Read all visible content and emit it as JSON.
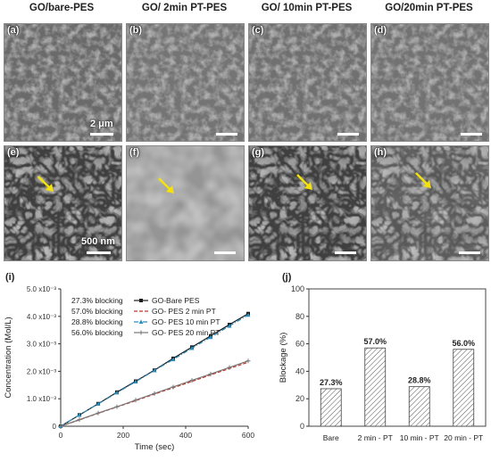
{
  "column_titles": [
    "GO/bare-PES",
    "GO/ 2min PT-PES",
    "GO/ 10min PT-PES",
    "GO/20min PT-PES"
  ],
  "sem_panels_top": [
    {
      "tag": "(a)",
      "scale_label": "2 μm"
    },
    {
      "tag": "(b)",
      "scale_label": ""
    },
    {
      "tag": "(c)",
      "scale_label": ""
    },
    {
      "tag": "(d)",
      "scale_label": ""
    }
  ],
  "sem_panels_bottom": [
    {
      "tag": "(e)",
      "scale_label": "500 nm"
    },
    {
      "tag": "(f)",
      "scale_label": ""
    },
    {
      "tag": "(g)",
      "scale_label": ""
    },
    {
      "tag": "(h)",
      "scale_label": ""
    }
  ],
  "chart_data": [
    {
      "panel": "(i)",
      "type": "line",
      "xlabel": "Time (sec)",
      "ylabel": "Concentration (Mol/L)",
      "xlim": [
        0,
        600
      ],
      "ylim": [
        0,
        0.005
      ],
      "x_ticks": [
        "0",
        "200",
        "400",
        "600"
      ],
      "y_ticks": [
        "0",
        "1.0 x10⁻³",
        "2.0 x10⁻³",
        "3.0 x10⁻³",
        "4.0 x10⁻³",
        "5.0 x10⁻³"
      ],
      "legend_position": "top-left",
      "annotations": [
        "27.3% blocking",
        "57.0% blocking",
        "28.8% blocking",
        "56.0% blocking"
      ],
      "x": [
        0,
        60,
        120,
        180,
        240,
        300,
        360,
        420,
        480,
        540,
        600
      ],
      "series": [
        {
          "name": "GO-Bare PES",
          "color": "#1a1a1a",
          "style": "solid",
          "marker": "square",
          "values": [
            0,
            0.00041,
            0.00082,
            0.00124,
            0.00164,
            0.00204,
            0.00247,
            0.00288,
            0.00329,
            0.0037,
            0.0041
          ]
        },
        {
          "name": "GO- PES 2 min PT",
          "color": "#c0392b",
          "style": "dashed",
          "marker": "none",
          "values": [
            0,
            0.00023,
            0.00047,
            0.0007,
            0.00093,
            0.00117,
            0.0014,
            0.00163,
            0.00187,
            0.0021,
            0.00233
          ]
        },
        {
          "name": "GO- PES 10 min PT",
          "color": "#2a8fbf",
          "style": "dashdot",
          "marker": "triangle",
          "values": [
            0,
            0.00041,
            0.00081,
            0.00122,
            0.00162,
            0.00203,
            0.00243,
            0.00284,
            0.00324,
            0.00365,
            0.00405
          ]
        },
        {
          "name": "GO- PES 20 min PT",
          "color": "#777777",
          "style": "solid",
          "marker": "plus",
          "values": [
            0,
            0.00024,
            0.00048,
            0.00071,
            0.00095,
            0.00119,
            0.00143,
            0.00167,
            0.0019,
            0.00214,
            0.00238
          ]
        }
      ]
    },
    {
      "panel": "(j)",
      "type": "bar",
      "ylabel": "Blockage (%)",
      "ylim": [
        0,
        100
      ],
      "y_ticks": [
        "0",
        "20",
        "40",
        "60",
        "80",
        "100"
      ],
      "categories": [
        "Bare",
        "2 min - PT",
        "10 min - PT",
        "20 min - PT"
      ],
      "values": [
        27.3,
        57.0,
        28.8,
        56.0
      ],
      "data_labels": [
        "27.3%",
        "57.0%",
        "28.8%",
        "56.0%"
      ],
      "fill": "hatched"
    }
  ]
}
